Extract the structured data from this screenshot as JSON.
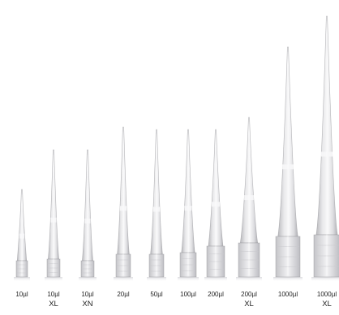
{
  "tips": [
    {
      "size": "10µl",
      "suffix": ""
    },
    {
      "size": "10µl",
      "suffix": "XL"
    },
    {
      "size": "10µl",
      "suffix": "XN"
    },
    {
      "size": "20µl",
      "suffix": ""
    },
    {
      "size": "50µl",
      "suffix": ""
    },
    {
      "size": "100µl",
      "suffix": ""
    },
    {
      "size": "200µl",
      "suffix": ""
    },
    {
      "size": "200µl",
      "suffix": "XL"
    },
    {
      "size": "1000µl",
      "suffix": ""
    },
    {
      "size": "1000µl",
      "suffix": "XL"
    }
  ],
  "colors": {
    "background": "#ffffff",
    "tip_body": "#e4e4e6",
    "tip_edge": "#9a9a9e",
    "tip_highlight": "#f7f7f8",
    "label_text": "#222222"
  }
}
